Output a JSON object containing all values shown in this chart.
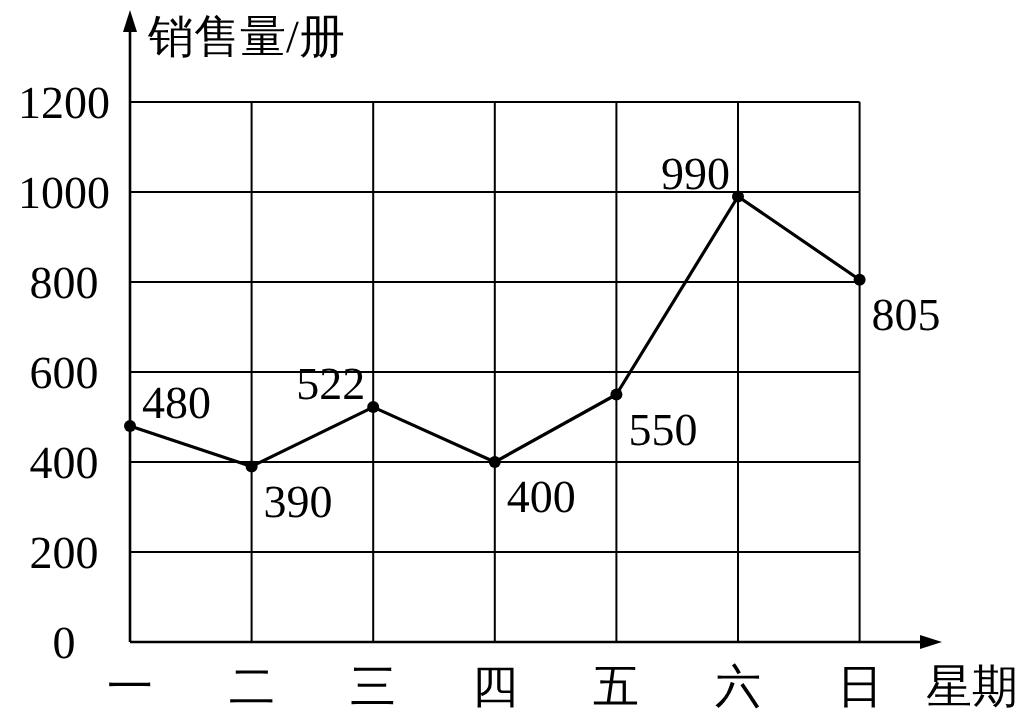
{
  "chart_data": {
    "type": "line",
    "xlabel": "星期",
    "ylabel": "销售量/册",
    "categories": [
      "一",
      "二",
      "三",
      "四",
      "五",
      "六",
      "日"
    ],
    "series": [
      {
        "color": "#000000",
        "values": [
          480,
          390,
          522,
          400,
          550,
          990,
          805
        ]
      }
    ],
    "ylim": [
      0,
      1200
    ],
    "yticks": [
      0,
      200,
      400,
      600,
      800,
      1000,
      1200
    ],
    "grid": true,
    "data_labels": true,
    "marker": "circle",
    "line_style": "solid"
  }
}
